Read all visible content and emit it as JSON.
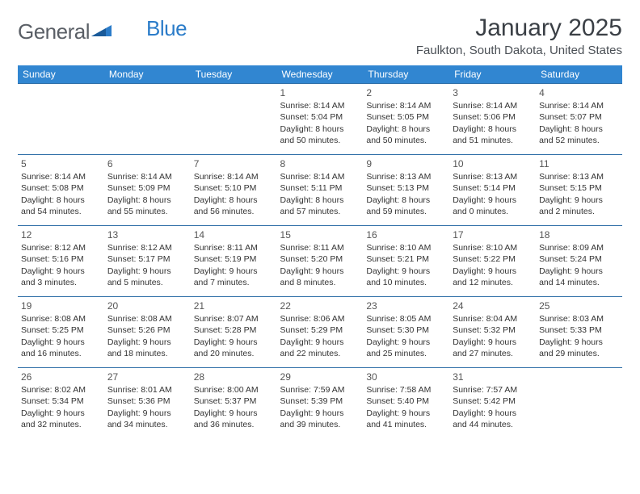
{
  "logo": {
    "word1": "General",
    "word2": "Blue"
  },
  "title": "January 2025",
  "location": "Faulkton, South Dakota, United States",
  "colors": {
    "header_bg": "#3186d1",
    "header_text": "#ffffff",
    "border": "#3170a8",
    "logo_gray": "#5a5f66",
    "logo_blue": "#2b7cc9",
    "title_color": "#3a3f45",
    "body_text": "#333333"
  },
  "day_headers": [
    "Sunday",
    "Monday",
    "Tuesday",
    "Wednesday",
    "Thursday",
    "Friday",
    "Saturday"
  ],
  "weeks": [
    [
      null,
      null,
      null,
      {
        "n": "1",
        "sr": "8:14 AM",
        "ss": "5:04 PM",
        "dh": "8",
        "dm": "50"
      },
      {
        "n": "2",
        "sr": "8:14 AM",
        "ss": "5:05 PM",
        "dh": "8",
        "dm": "50"
      },
      {
        "n": "3",
        "sr": "8:14 AM",
        "ss": "5:06 PM",
        "dh": "8",
        "dm": "51"
      },
      {
        "n": "4",
        "sr": "8:14 AM",
        "ss": "5:07 PM",
        "dh": "8",
        "dm": "52"
      }
    ],
    [
      {
        "n": "5",
        "sr": "8:14 AM",
        "ss": "5:08 PM",
        "dh": "8",
        "dm": "54"
      },
      {
        "n": "6",
        "sr": "8:14 AM",
        "ss": "5:09 PM",
        "dh": "8",
        "dm": "55"
      },
      {
        "n": "7",
        "sr": "8:14 AM",
        "ss": "5:10 PM",
        "dh": "8",
        "dm": "56"
      },
      {
        "n": "8",
        "sr": "8:14 AM",
        "ss": "5:11 PM",
        "dh": "8",
        "dm": "57"
      },
      {
        "n": "9",
        "sr": "8:13 AM",
        "ss": "5:13 PM",
        "dh": "8",
        "dm": "59"
      },
      {
        "n": "10",
        "sr": "8:13 AM",
        "ss": "5:14 PM",
        "dh": "9",
        "dm": "0"
      },
      {
        "n": "11",
        "sr": "8:13 AM",
        "ss": "5:15 PM",
        "dh": "9",
        "dm": "2"
      }
    ],
    [
      {
        "n": "12",
        "sr": "8:12 AM",
        "ss": "5:16 PM",
        "dh": "9",
        "dm": "3"
      },
      {
        "n": "13",
        "sr": "8:12 AM",
        "ss": "5:17 PM",
        "dh": "9",
        "dm": "5"
      },
      {
        "n": "14",
        "sr": "8:11 AM",
        "ss": "5:19 PM",
        "dh": "9",
        "dm": "7"
      },
      {
        "n": "15",
        "sr": "8:11 AM",
        "ss": "5:20 PM",
        "dh": "9",
        "dm": "8"
      },
      {
        "n": "16",
        "sr": "8:10 AM",
        "ss": "5:21 PM",
        "dh": "9",
        "dm": "10"
      },
      {
        "n": "17",
        "sr": "8:10 AM",
        "ss": "5:22 PM",
        "dh": "9",
        "dm": "12"
      },
      {
        "n": "18",
        "sr": "8:09 AM",
        "ss": "5:24 PM",
        "dh": "9",
        "dm": "14"
      }
    ],
    [
      {
        "n": "19",
        "sr": "8:08 AM",
        "ss": "5:25 PM",
        "dh": "9",
        "dm": "16"
      },
      {
        "n": "20",
        "sr": "8:08 AM",
        "ss": "5:26 PM",
        "dh": "9",
        "dm": "18"
      },
      {
        "n": "21",
        "sr": "8:07 AM",
        "ss": "5:28 PM",
        "dh": "9",
        "dm": "20"
      },
      {
        "n": "22",
        "sr": "8:06 AM",
        "ss": "5:29 PM",
        "dh": "9",
        "dm": "22"
      },
      {
        "n": "23",
        "sr": "8:05 AM",
        "ss": "5:30 PM",
        "dh": "9",
        "dm": "25"
      },
      {
        "n": "24",
        "sr": "8:04 AM",
        "ss": "5:32 PM",
        "dh": "9",
        "dm": "27"
      },
      {
        "n": "25",
        "sr": "8:03 AM",
        "ss": "5:33 PM",
        "dh": "9",
        "dm": "29"
      }
    ],
    [
      {
        "n": "26",
        "sr": "8:02 AM",
        "ss": "5:34 PM",
        "dh": "9",
        "dm": "32"
      },
      {
        "n": "27",
        "sr": "8:01 AM",
        "ss": "5:36 PM",
        "dh": "9",
        "dm": "34"
      },
      {
        "n": "28",
        "sr": "8:00 AM",
        "ss": "5:37 PM",
        "dh": "9",
        "dm": "36"
      },
      {
        "n": "29",
        "sr": "7:59 AM",
        "ss": "5:39 PM",
        "dh": "9",
        "dm": "39"
      },
      {
        "n": "30",
        "sr": "7:58 AM",
        "ss": "5:40 PM",
        "dh": "9",
        "dm": "41"
      },
      {
        "n": "31",
        "sr": "7:57 AM",
        "ss": "5:42 PM",
        "dh": "9",
        "dm": "44"
      },
      null
    ]
  ],
  "labels": {
    "sunrise": "Sunrise: ",
    "sunset": "Sunset: ",
    "daylight": "Daylight: ",
    "hours": " hours",
    "and": "and ",
    "minutes": " minutes."
  }
}
